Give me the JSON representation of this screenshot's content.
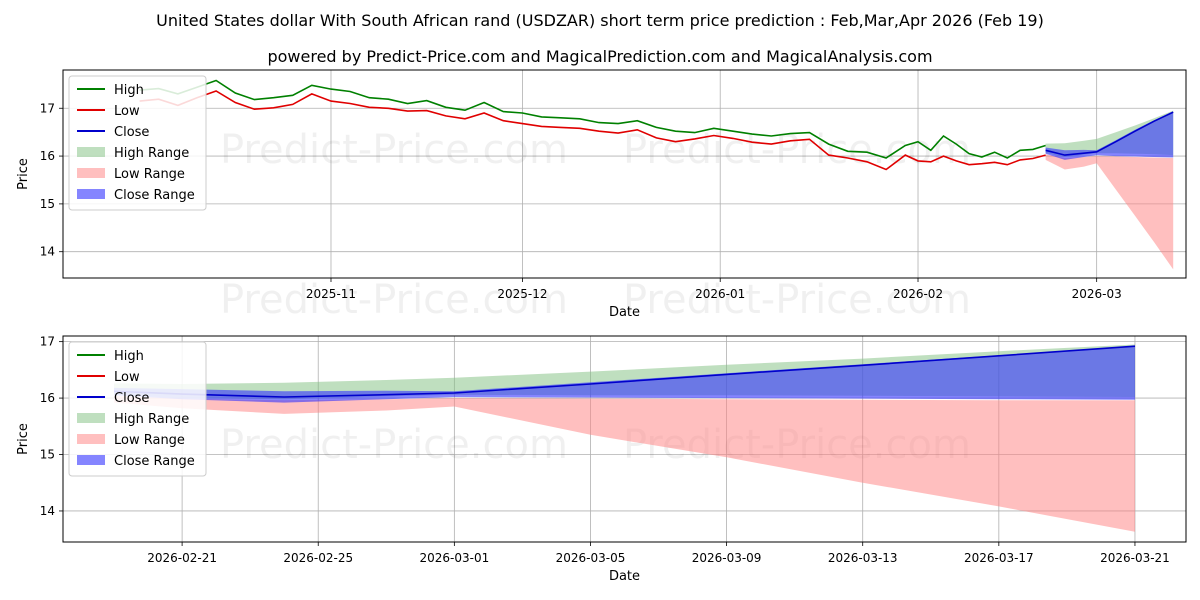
{
  "title": "United States dollar With South African rand (USDZAR) short term price prediction : Feb,Mar,Apr 2026 (Feb 19)",
  "subtitle": "powered by Predict-Price.com and MagicalPrediction.com and MagicalAnalysis.com",
  "watermark": "Predict-Price.com",
  "colors": {
    "high": "#008000",
    "low": "#e00000",
    "close": "#0000cc",
    "high_range": "#7fbf7f",
    "low_range": "#ff7f7f",
    "close_range": "#3333ff"
  },
  "chart_data": [
    {
      "type": "line",
      "panel": "top",
      "xlabel": "Date",
      "ylabel": "Price",
      "ylim": [
        13.45,
        17.8
      ],
      "yticks": [
        14,
        15,
        16,
        17
      ],
      "xticks": [
        {
          "label": "2025-11",
          "day": 30
        },
        {
          "label": "2025-12",
          "day": 60
        },
        {
          "label": "2026-01",
          "day": 91
        },
        {
          "label": "2026-02",
          "day": 122
        },
        {
          "label": "2026-03",
          "day": 150
        }
      ],
      "x_unit": "day index (0 = 2025-10-02)",
      "xlim": [
        -12,
        164
      ],
      "legend": [
        "High",
        "Low",
        "Close",
        "High Range",
        "Low Range",
        "Close Range"
      ],
      "legend_position": "upper-left",
      "series": [
        {
          "name": "High",
          "x": [
            0,
            3,
            6,
            9,
            12,
            15,
            18,
            21,
            24,
            27,
            30,
            33,
            36,
            39,
            42,
            45,
            48,
            51,
            54,
            57,
            60,
            63,
            66,
            69,
            72,
            75,
            78,
            81,
            84,
            87,
            90,
            93,
            96,
            99,
            102,
            105,
            108,
            111,
            114,
            117,
            120,
            122,
            124,
            126,
            128,
            130,
            132,
            134,
            136,
            138,
            140,
            142
          ],
          "values": [
            17.38,
            17.41,
            17.3,
            17.44,
            17.58,
            17.32,
            17.18,
            17.22,
            17.27,
            17.48,
            17.4,
            17.35,
            17.22,
            17.19,
            17.1,
            17.16,
            17.02,
            16.96,
            17.12,
            16.93,
            16.9,
            16.82,
            16.8,
            16.78,
            16.7,
            16.68,
            16.74,
            16.6,
            16.52,
            16.49,
            16.58,
            16.52,
            16.46,
            16.42,
            16.47,
            16.49,
            16.25,
            16.1,
            16.08,
            15.96,
            16.22,
            16.3,
            16.12,
            16.42,
            16.25,
            16.05,
            15.98,
            16.08,
            15.96,
            16.12,
            16.14,
            16.22
          ]
        },
        {
          "name": "Low",
          "x": [
            0,
            3,
            6,
            9,
            12,
            15,
            18,
            21,
            24,
            27,
            30,
            33,
            36,
            39,
            42,
            45,
            48,
            51,
            54,
            57,
            60,
            63,
            66,
            69,
            72,
            75,
            78,
            81,
            84,
            87,
            90,
            93,
            96,
            99,
            102,
            105,
            108,
            111,
            114,
            117,
            120,
            122,
            124,
            126,
            128,
            130,
            132,
            134,
            136,
            138,
            140,
            142
          ],
          "values": [
            17.15,
            17.19,
            17.06,
            17.22,
            17.36,
            17.12,
            16.98,
            17.01,
            17.08,
            17.3,
            17.15,
            17.1,
            17.02,
            17.0,
            16.94,
            16.95,
            16.84,
            16.78,
            16.9,
            16.74,
            16.68,
            16.62,
            16.6,
            16.58,
            16.52,
            16.48,
            16.55,
            16.38,
            16.3,
            16.36,
            16.43,
            16.37,
            16.29,
            16.25,
            16.32,
            16.35,
            16.02,
            15.96,
            15.88,
            15.72,
            16.02,
            15.9,
            15.88,
            16.0,
            15.9,
            15.82,
            15.84,
            15.87,
            15.82,
            15.92,
            15.95,
            16.02
          ]
        },
        {
          "name": "Close",
          "x": [
            142,
            145,
            148,
            150,
            153,
            156,
            159,
            162
          ],
          "values": [
            16.12,
            16.02,
            16.06,
            16.09,
            16.3,
            16.52,
            16.73,
            16.92
          ]
        },
        {
          "name": "High Range",
          "x": [
            142,
            145,
            148,
            150,
            153,
            156,
            159,
            162
          ],
          "upper": [
            16.26,
            16.27,
            16.32,
            16.36,
            16.5,
            16.64,
            16.79,
            16.95
          ],
          "lower": [
            16.06,
            15.98,
            16.03,
            16.06,
            16.06,
            16.05,
            16.04,
            16.02
          ]
        },
        {
          "name": "Low Range",
          "x": [
            142,
            145,
            148,
            150,
            153,
            156,
            159,
            162
          ],
          "upper": [
            16.04,
            15.96,
            15.98,
            16.0,
            15.99,
            15.98,
            15.97,
            15.96
          ],
          "lower": [
            15.92,
            15.72,
            15.78,
            15.85,
            15.3,
            14.75,
            14.2,
            13.63
          ]
        },
        {
          "name": "Close Range",
          "x": [
            142,
            145,
            148,
            150,
            153,
            156,
            159,
            162
          ],
          "upper": [
            16.18,
            16.12,
            16.13,
            16.12,
            16.33,
            16.55,
            16.75,
            16.92
          ],
          "lower": [
            16.05,
            15.92,
            15.98,
            16.02,
            16.0,
            15.99,
            15.98,
            15.97
          ]
        }
      ]
    },
    {
      "type": "line",
      "panel": "bottom",
      "xlabel": "Date",
      "ylabel": "Price",
      "ylim": [
        13.45,
        17.1
      ],
      "yticks": [
        14,
        15,
        16,
        17
      ],
      "xticks": [
        {
          "label": "2026-02-21",
          "day": 2
        },
        {
          "label": "2026-02-25",
          "day": 6
        },
        {
          "label": "2026-03-01",
          "day": 10
        },
        {
          "label": "2026-03-05",
          "day": 14
        },
        {
          "label": "2026-03-09",
          "day": 18
        },
        {
          "label": "2026-03-13",
          "day": 22
        },
        {
          "label": "2026-03-17",
          "day": 26
        },
        {
          "label": "2026-03-21",
          "day": 30
        }
      ],
      "x_unit": "day index (0 = 2026-02-19)",
      "xlim": [
        -1.5,
        31.5
      ],
      "legend": [
        "High",
        "Low",
        "Close",
        "High Range",
        "Low Range",
        "Close Range"
      ],
      "legend_position": "upper-left",
      "series": [
        {
          "name": "Close",
          "x": [
            0,
            2,
            5,
            8,
            10,
            14,
            18,
            22,
            26,
            30
          ],
          "values": [
            16.12,
            16.07,
            16.02,
            16.06,
            16.09,
            16.25,
            16.42,
            16.58,
            16.75,
            16.92
          ]
        },
        {
          "name": "High Range",
          "x": [
            0,
            2,
            5,
            8,
            10,
            14,
            18,
            22,
            26,
            30
          ],
          "upper": [
            16.26,
            16.25,
            16.27,
            16.32,
            16.36,
            16.47,
            16.59,
            16.7,
            16.83,
            16.95
          ],
          "lower": [
            16.06,
            16.0,
            15.98,
            16.03,
            16.06,
            16.05,
            16.05,
            16.04,
            16.03,
            16.02
          ]
        },
        {
          "name": "Low Range",
          "x": [
            0,
            2,
            5,
            8,
            10,
            14,
            18,
            22,
            26,
            30
          ],
          "upper": [
            16.04,
            15.99,
            15.96,
            15.98,
            16.0,
            15.99,
            15.98,
            15.97,
            15.96,
            15.96
          ],
          "lower": [
            15.92,
            15.82,
            15.72,
            15.78,
            15.85,
            15.35,
            14.95,
            14.5,
            14.08,
            13.63
          ]
        },
        {
          "name": "Close Range",
          "x": [
            0,
            2,
            5,
            8,
            10,
            14,
            18,
            22,
            26,
            30
          ],
          "upper": [
            16.18,
            16.16,
            16.12,
            16.13,
            16.12,
            16.28,
            16.44,
            16.6,
            16.76,
            16.92
          ],
          "lower": [
            16.05,
            15.98,
            15.92,
            15.98,
            16.02,
            16.01,
            16.0,
            15.99,
            15.98,
            15.97
          ]
        }
      ]
    }
  ]
}
